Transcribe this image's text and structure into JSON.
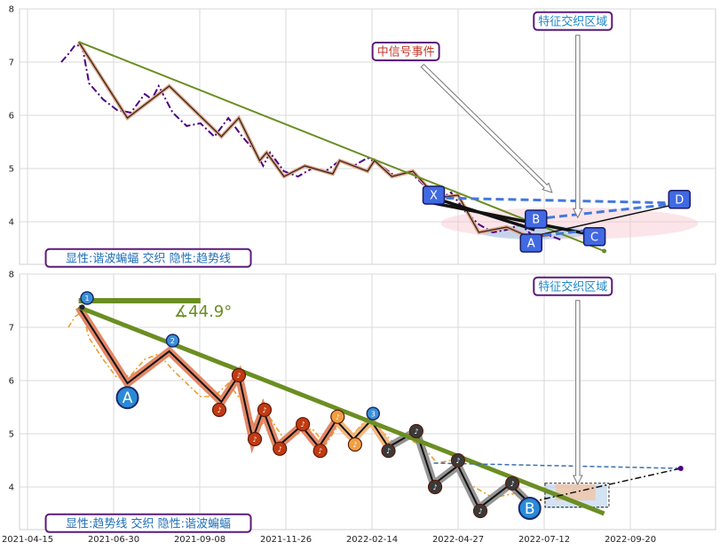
{
  "chart_data": [
    {
      "type": "line",
      "panel": "top",
      "ylim": [
        3.2,
        8
      ],
      "yticks": [
        4,
        5,
        6,
        7,
        8
      ],
      "x_dates": [
        "2021-04-15",
        "2021-06-30",
        "2021-09-08",
        "2021-11-26",
        "2022-02-14",
        "2022-04-27",
        "2022-07-12",
        "2022-09-20"
      ],
      "grid": true,
      "series": [
        {
          "kind": "price",
          "values": [
            [
              0.06,
              7.0
            ],
            [
              0.07,
              7.15
            ],
            [
              0.08,
              7.32
            ],
            [
              0.09,
              7.3
            ],
            [
              0.1,
              6.6
            ],
            [
              0.12,
              6.3
            ],
            [
              0.14,
              6.1
            ],
            [
              0.16,
              6.05
            ],
            [
              0.18,
              6.4
            ],
            [
              0.19,
              6.3
            ],
            [
              0.2,
              6.55
            ],
            [
              0.22,
              6.05
            ],
            [
              0.24,
              5.8
            ],
            [
              0.26,
              5.85
            ],
            [
              0.28,
              5.6
            ],
            [
              0.3,
              5.95
            ],
            [
              0.32,
              5.6
            ],
            [
              0.34,
              5.3
            ],
            [
              0.35,
              5.05
            ],
            [
              0.36,
              5.3
            ],
            [
              0.38,
              4.95
            ],
            [
              0.4,
              4.85
            ],
            [
              0.42,
              5.0
            ],
            [
              0.44,
              4.95
            ],
            [
              0.46,
              5.15
            ],
            [
              0.48,
              5.05
            ],
            [
              0.5,
              5.2
            ],
            [
              0.52,
              5.05
            ],
            [
              0.54,
              4.85
            ],
            [
              0.56,
              4.95
            ],
            [
              0.58,
              4.7
            ],
            [
              0.6,
              4.4
            ],
            [
              0.62,
              4.55
            ],
            [
              0.64,
              4.2
            ],
            [
              0.66,
              3.95
            ],
            [
              0.68,
              3.8
            ],
            [
              0.7,
              3.85
            ],
            [
              0.72,
              3.95
            ],
            [
              0.74,
              3.7
            ],
            [
              0.76,
              3.75
            ],
            [
              0.78,
              3.65
            ]
          ]
        },
        {
          "kind": "wave",
          "values": [
            [
              0.085,
              7.38
            ],
            [
              0.155,
              5.95
            ],
            [
              0.215,
              6.55
            ],
            [
              0.29,
              5.6
            ],
            [
              0.315,
              5.95
            ],
            [
              0.345,
              5.15
            ],
            [
              0.355,
              5.3
            ],
            [
              0.38,
              4.85
            ],
            [
              0.41,
              5.05
            ],
            [
              0.45,
              4.9
            ],
            [
              0.46,
              5.15
            ],
            [
              0.5,
              4.95
            ],
            [
              0.51,
              5.15
            ],
            [
              0.535,
              4.85
            ],
            [
              0.565,
              4.95
            ],
            [
              0.6,
              4.45
            ],
            [
              0.63,
              4.5
            ],
            [
              0.66,
              3.8
            ],
            [
              0.7,
              3.9
            ],
            [
              0.735,
              3.7
            ],
            [
              0.76,
              3.75
            ]
          ]
        }
      ],
      "trend_lines": [
        {
          "kind": "downtrend",
          "from": [
            0.085,
            7.38
          ],
          "to": [
            0.84,
            3.45
          ]
        },
        {
          "kind": "xabcd_XA",
          "from": [
            0.595,
            4.45
          ],
          "to": [
            0.74,
            3.85
          ]
        },
        {
          "kind": "xabcd_XC",
          "from": [
            0.595,
            4.35
          ],
          "to": [
            0.825,
            3.75
          ]
        },
        {
          "kind": "xabcd_AD",
          "from": [
            0.735,
            3.72
          ],
          "to": [
            0.95,
            4.35
          ]
        },
        {
          "kind": "xabcd_BD_dash",
          "from": [
            0.74,
            4.05
          ],
          "to": [
            0.95,
            4.35
          ]
        },
        {
          "kind": "xabcd_XD_dash",
          "from": [
            0.595,
            4.45
          ],
          "to": [
            0.95,
            4.35
          ]
        },
        {
          "kind": "xabcd_AC_dash",
          "from": [
            0.735,
            3.72
          ],
          "to": [
            0.825,
            3.85
          ]
        }
      ],
      "points_labels": [
        {
          "label": "X",
          "x": 0.595,
          "y": 4.5
        },
        {
          "label": "B",
          "x": 0.742,
          "y": 4.05
        },
        {
          "label": "A",
          "x": 0.735,
          "y": 3.6
        },
        {
          "label": "C",
          "x": 0.826,
          "y": 3.72
        },
        {
          "label": "D",
          "x": 0.948,
          "y": 4.42
        }
      ],
      "annotations": [
        {
          "text": "中信号事件",
          "x": 0.555,
          "y": 7.2
        },
        {
          "text": "特征交织区域",
          "x": 0.795,
          "y": 7.77
        },
        {
          "text": "显性:谐波蝙蝠 交织 隐性:趋势线",
          "x": 0.185,
          "y": 3.32
        }
      ]
    },
    {
      "type": "line",
      "panel": "bottom",
      "ylim": [
        3.2,
        8
      ],
      "yticks": [
        4,
        5,
        6,
        7,
        8
      ],
      "x_dates": [
        "2021-04-15",
        "2021-06-30",
        "2021-09-08",
        "2021-11-26",
        "2022-02-14",
        "2022-04-27",
        "2022-07-12",
        "2022-09-20"
      ],
      "grid": true,
      "series": [
        {
          "kind": "price",
          "values": [
            [
              0.07,
              7.0
            ],
            [
              0.08,
              7.2
            ],
            [
              0.09,
              7.3
            ],
            [
              0.1,
              6.8
            ],
            [
              0.12,
              6.4
            ],
            [
              0.14,
              6.05
            ],
            [
              0.16,
              6.1
            ],
            [
              0.18,
              6.4
            ],
            [
              0.2,
              6.5
            ],
            [
              0.22,
              6.2
            ],
            [
              0.24,
              5.95
            ],
            [
              0.26,
              5.7
            ],
            [
              0.28,
              5.7
            ],
            [
              0.3,
              5.95
            ],
            [
              0.32,
              5.6
            ],
            [
              0.34,
              5.1
            ],
            [
              0.36,
              5.3
            ],
            [
              0.38,
              4.9
            ],
            [
              0.4,
              5.0
            ],
            [
              0.42,
              5.1
            ],
            [
              0.44,
              4.8
            ],
            [
              0.46,
              5.2
            ],
            [
              0.48,
              5.0
            ],
            [
              0.5,
              5.3
            ],
            [
              0.52,
              5.05
            ],
            [
              0.54,
              4.8
            ],
            [
              0.56,
              4.9
            ],
            [
              0.58,
              4.75
            ],
            [
              0.6,
              4.45
            ],
            [
              0.62,
              4.5
            ],
            [
              0.64,
              4.1
            ],
            [
              0.66,
              3.95
            ],
            [
              0.68,
              3.8
            ],
            [
              0.7,
              3.85
            ],
            [
              0.72,
              3.9
            ],
            [
              0.74,
              3.7
            ],
            [
              0.76,
              3.8
            ]
          ]
        },
        {
          "kind": "wave",
          "values": [
            [
              0.085,
              7.38
            ],
            [
              0.155,
              5.95
            ],
            [
              0.215,
              6.55
            ],
            [
              0.29,
              5.6
            ],
            [
              0.315,
              6.1
            ],
            [
              0.335,
              4.9
            ],
            [
              0.35,
              5.45
            ],
            [
              0.37,
              4.75
            ],
            [
              0.405,
              5.15
            ],
            [
              0.43,
              4.75
            ],
            [
              0.455,
              5.25
            ],
            [
              0.48,
              4.9
            ],
            [
              0.505,
              5.25
            ],
            [
              0.53,
              4.75
            ],
            [
              0.57,
              5.05
            ],
            [
              0.595,
              4.05
            ],
            [
              0.63,
              4.4
            ],
            [
              0.66,
              3.6
            ],
            [
              0.705,
              4.05
            ],
            [
              0.74,
              3.6
            ]
          ]
        }
      ],
      "trend_lines": [
        {
          "kind": "downtrend",
          "from": [
            0.085,
            7.38
          ],
          "to": [
            0.84,
            3.5
          ]
        },
        {
          "kind": "horizontal",
          "from": [
            0.085,
            7.5
          ],
          "to": [
            0.26,
            7.5
          ]
        },
        {
          "kind": "pattern_dash_XD",
          "from": [
            0.595,
            4.45
          ],
          "to": [
            0.95,
            4.35
          ]
        },
        {
          "kind": "pattern_dashdot",
          "from": [
            0.735,
            3.72
          ],
          "to": [
            0.95,
            4.35
          ]
        }
      ],
      "angle_label": "∡44.9°",
      "wave_markers": [
        {
          "n": "1",
          "x": 0.097,
          "y": 7.55
        },
        {
          "n": "2",
          "x": 0.22,
          "y": 6.75
        },
        {
          "n": "3",
          "x": 0.508,
          "y": 5.38
        }
      ],
      "big_markers": [
        {
          "label": "A",
          "x": 0.155,
          "y": 5.68
        },
        {
          "label": "B",
          "x": 0.733,
          "y": 3.6
        }
      ],
      "note_markers": [
        {
          "x": 0.287,
          "y": 5.45,
          "c": "#c23a12"
        },
        {
          "x": 0.315,
          "y": 6.1,
          "c": "#c23a12"
        },
        {
          "x": 0.338,
          "y": 4.9,
          "c": "#c23a12"
        },
        {
          "x": 0.352,
          "y": 5.45,
          "c": "#c23a12"
        },
        {
          "x": 0.374,
          "y": 4.72,
          "c": "#c23a12"
        },
        {
          "x": 0.407,
          "y": 5.18,
          "c": "#c23a12"
        },
        {
          "x": 0.432,
          "y": 4.68,
          "c": "#c23a12"
        },
        {
          "x": 0.457,
          "y": 5.32,
          "c": "#f0a040"
        },
        {
          "x": 0.482,
          "y": 4.8,
          "c": "#f0a040"
        },
        {
          "x": 0.53,
          "y": 4.68,
          "c": "#3a3a3a"
        },
        {
          "x": 0.57,
          "y": 5.05,
          "c": "#3a3a3a"
        },
        {
          "x": 0.597,
          "y": 4.0,
          "c": "#3a3a3a"
        },
        {
          "x": 0.63,
          "y": 4.5,
          "c": "#3a3a3a"
        },
        {
          "x": 0.662,
          "y": 3.55,
          "c": "#3a3a3a"
        },
        {
          "x": 0.708,
          "y": 4.07,
          "c": "#3a3a3a"
        }
      ],
      "annotations": [
        {
          "text": "特征交织区域",
          "x": 0.795,
          "y": 7.77
        },
        {
          "text": "显性:趋势线 交织 隐性:谐波蝙蝠",
          "x": 0.185,
          "y": 3.32
        }
      ]
    }
  ],
  "colors": {
    "price": "#4b0082",
    "price_bottom": "#e8a030",
    "wave_outer": "#d2691e",
    "trend": "#6b8e23",
    "blue_dash": "#4477dd",
    "label_border": "#5b1a7a",
    "label_text_top_left": "#1e6fb8",
    "callout_event": "#c0392b",
    "callout_zone": "#1e88c8",
    "angle": "#6b8e23"
  }
}
